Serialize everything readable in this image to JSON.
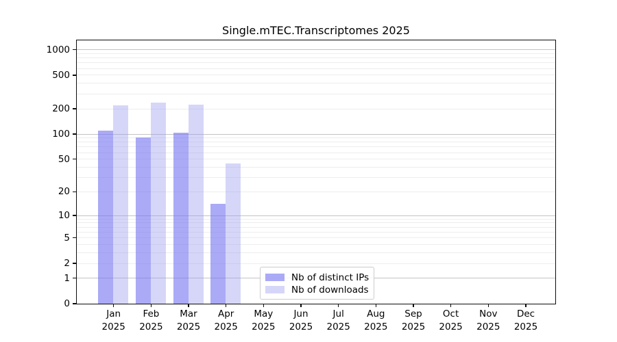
{
  "title": "Single.mTEC.Transcriptomes 2025",
  "legend": {
    "items": [
      {
        "label": "Nb of distinct IPs",
        "key": "ips"
      },
      {
        "label": "Nb of downloads",
        "key": "downloads"
      }
    ]
  },
  "colors": {
    "ips": "rgba(118,118,240,0.62)",
    "downloads": "rgba(152,152,240,0.40)",
    "major_grid": "#c3c3c3",
    "minor_grid": "#ededed",
    "axis": "#0a0a0a",
    "legend_border": "#cccccc"
  },
  "chart_data": {
    "type": "bar",
    "title": "Single.mTEC.Transcriptomes 2025",
    "x_tick_months": [
      "Jan",
      "Feb",
      "Mar",
      "Apr",
      "May",
      "Jun",
      "Jul",
      "Aug",
      "Sep",
      "Oct",
      "Nov",
      "Dec"
    ],
    "x_tick_year": "2025",
    "categories": [
      "Jan 2025",
      "Feb 2025",
      "Mar 2025",
      "Apr 2025",
      "May 2025",
      "Jun 2025",
      "Jul 2025",
      "Aug 2025",
      "Sep 2025",
      "Oct 2025",
      "Nov 2025",
      "Dec 2025"
    ],
    "series": [
      {
        "name": "Nb of distinct IPs",
        "key": "ips",
        "values": [
          110,
          90,
          104,
          14,
          0,
          0,
          0,
          0,
          0,
          0,
          0,
          0
        ]
      },
      {
        "name": "Nb of downloads",
        "key": "downloads",
        "values": [
          218,
          237,
          224,
          44,
          0,
          0,
          0,
          0,
          0,
          0,
          0,
          0
        ]
      }
    ],
    "yscale": "log1p",
    "ylim": [
      0,
      1290
    ],
    "y_axis_ticks": [
      0,
      1,
      2,
      5,
      10,
      20,
      50,
      100,
      200,
      500,
      1000
    ],
    "y_major_gridlines": [
      1,
      10,
      100,
      1000
    ],
    "y_minor_gridlines": [
      2,
      3,
      4,
      5,
      6,
      7,
      8,
      9,
      20,
      30,
      40,
      50,
      60,
      70,
      80,
      90,
      200,
      300,
      400,
      500,
      600,
      700,
      800,
      900
    ],
    "grid": "horizontal",
    "legend_position": "inside bottom-center"
  }
}
